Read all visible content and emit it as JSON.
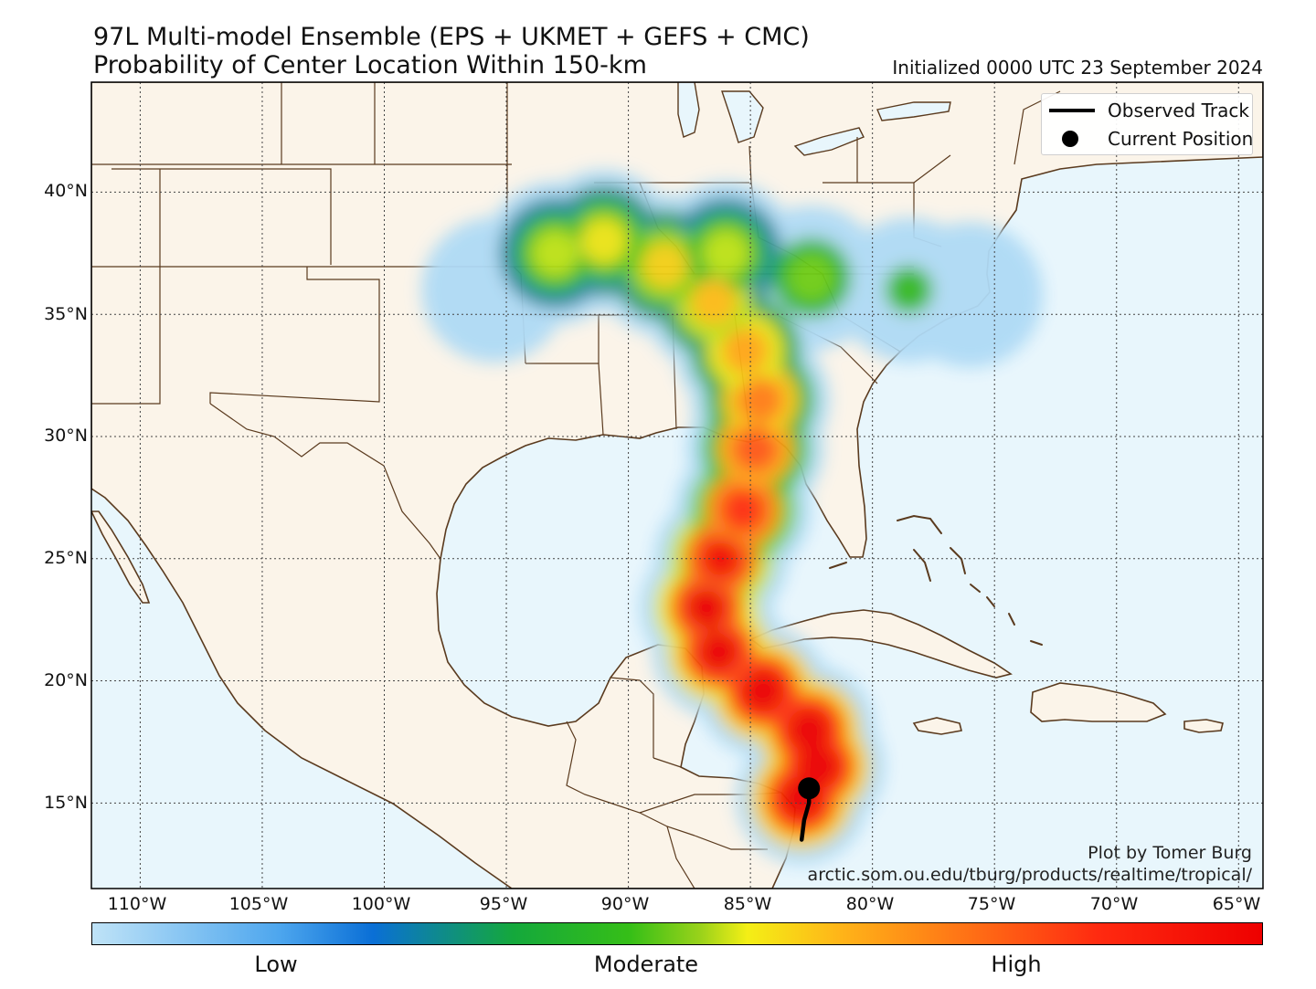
{
  "title_line1": "97L Multi-model Ensemble (EPS + UKMET + GEFS + CMC)",
  "title_line2": "Probability of Center Location Within 150-km",
  "initialized": "Initialized 0000 UTC 23 September 2024",
  "map_extent": {
    "lon_min": -112,
    "lon_max": -64,
    "lat_min": 11.5,
    "lat_max": 44.5
  },
  "lat_ticks": [
    {
      "value": 40,
      "label": "40°N"
    },
    {
      "value": 35,
      "label": "35°N"
    },
    {
      "value": 30,
      "label": "30°N"
    },
    {
      "value": 25,
      "label": "25°N"
    },
    {
      "value": 20,
      "label": "20°N"
    },
    {
      "value": 15,
      "label": "15°N"
    }
  ],
  "lon_ticks": [
    {
      "value": -110,
      "label": "110°W"
    },
    {
      "value": -105,
      "label": "105°W"
    },
    {
      "value": -100,
      "label": "100°W"
    },
    {
      "value": -95,
      "label": "95°W"
    },
    {
      "value": -90,
      "label": "90°W"
    },
    {
      "value": -85,
      "label": "85°W"
    },
    {
      "value": -80,
      "label": "80°W"
    },
    {
      "value": -75,
      "label": "75°W"
    },
    {
      "value": -70,
      "label": "70°W"
    },
    {
      "value": -65,
      "label": "65°W"
    }
  ],
  "legend": {
    "observed_track": "Observed Track",
    "current_position": "Current Position"
  },
  "credit": {
    "line1": "Plot by Tomer Burg",
    "line2": "arctic.som.ou.edu/tburg/products/realtime/tropical/"
  },
  "colorbar": {
    "low": "Low",
    "moderate": "Moderate",
    "high": "High"
  },
  "observed_track": [
    [
      -82.9,
      13.5
    ],
    [
      -82.8,
      14.3
    ],
    [
      -82.6,
      15.0
    ],
    [
      -82.6,
      15.6
    ]
  ],
  "current_position": {
    "lon": -82.6,
    "lat": 15.6
  },
  "probability_axis": [
    [
      -82.9,
      15.2,
      1.0
    ],
    [
      -82.2,
      16.5,
      1.0
    ],
    [
      -82.6,
      18.0,
      1.0
    ],
    [
      -84.5,
      19.6,
      1.0
    ],
    [
      -86.3,
      21.2,
      0.95
    ],
    [
      -86.8,
      23.0,
      0.9
    ],
    [
      -86.2,
      25.0,
      0.85
    ],
    [
      -85.3,
      27.0,
      0.75
    ],
    [
      -84.8,
      29.5,
      0.65
    ],
    [
      -84.6,
      31.5,
      0.55
    ],
    [
      -85.2,
      33.5,
      0.45
    ],
    [
      -86.5,
      35.5,
      0.4
    ],
    [
      -88.5,
      37.0,
      0.35
    ],
    [
      -91.0,
      38.0,
      0.3
    ],
    [
      -93.0,
      37.5,
      0.25
    ],
    [
      -86.0,
      37.5,
      0.25
    ],
    [
      -82.5,
      36.5,
      0.2
    ],
    [
      -78.5,
      36.0,
      0.12
    ],
    [
      -76.0,
      35.8,
      0.08
    ],
    [
      -95.5,
      36.0,
      0.1
    ]
  ],
  "colors": {
    "land": "#fbf4e9",
    "ocean": "#e8f6fc",
    "border": "#5a3a1e",
    "grid": "#444444"
  }
}
